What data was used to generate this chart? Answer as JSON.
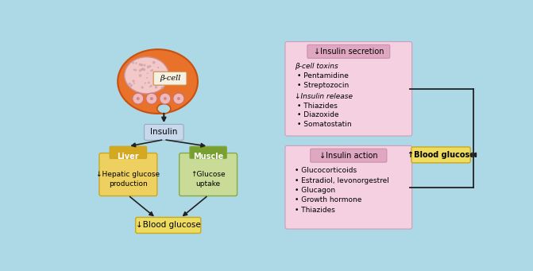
{
  "bg_color": "#ADD8E6",
  "left_panel": {
    "cell_outer_color": "#E8722A",
    "cell_outer_edge": "#C85010",
    "nucleus_color": "#F2C8C8",
    "nucleus_edge": "#D09090",
    "beta_cell_box_color": "#F5F0E0",
    "beta_cell_box_edge": "#CC8844",
    "beta_cell_label": "β-cell",
    "vesicle_color": "#F0B8B8",
    "vesicle_edge": "#CC7070",
    "vesicle_dot_color": "#CC8888",
    "insulin_box_color": "#C8D8EC",
    "insulin_box_edge": "#9AAABB",
    "insulin_label": "Insulin",
    "liver_box_color": "#EDD060",
    "liver_box_edge": "#C8A820",
    "liver_header_color": "#D4A820",
    "liver_label": "Liver",
    "liver_sub": "↓Hepatic glucose\nproduction",
    "muscle_box_color": "#C8DC98",
    "muscle_box_edge": "#88A840",
    "muscle_header_color": "#78A030",
    "muscle_label": "Muscle",
    "muscle_sub": "↑Glucose\nuptake",
    "blood_glucose_box_color": "#EEDC60",
    "blood_glucose_box_edge": "#C8A820",
    "blood_glucose_label": "↓Blood glucose"
  },
  "right_top_panel": {
    "box_color": "#F4D0E0",
    "box_edge": "#C8A0B8",
    "header_color": "#E0A8C0",
    "header_edge": "#C890B0",
    "header_text": "↓Insulin secretion",
    "line1_bold": "β-cell toxins",
    "line2": "• Pentamidine",
    "line3": "• Streptozocin",
    "line4_bold": "↓Insulin release",
    "line5": "• Thiazides",
    "line6": "• Diazoxide",
    "line7": "• Somatostatin"
  },
  "right_bottom_panel": {
    "box_color": "#F4D0E0",
    "box_edge": "#C8A0B8",
    "header_color": "#E0A8C0",
    "header_edge": "#C890B0",
    "header_text": "↓Insulin action",
    "line1": "• Glucocorticoids",
    "line2": "• Estradiol, levonorgestrel",
    "line3": "• Glucagon",
    "line4": "• Growth hormone",
    "line5": "• Thiazides"
  },
  "right_result_box": {
    "box_color": "#EEDC60",
    "box_edge": "#C8A820",
    "label": "↑Blood glucose"
  },
  "arrow_color": "#222222"
}
